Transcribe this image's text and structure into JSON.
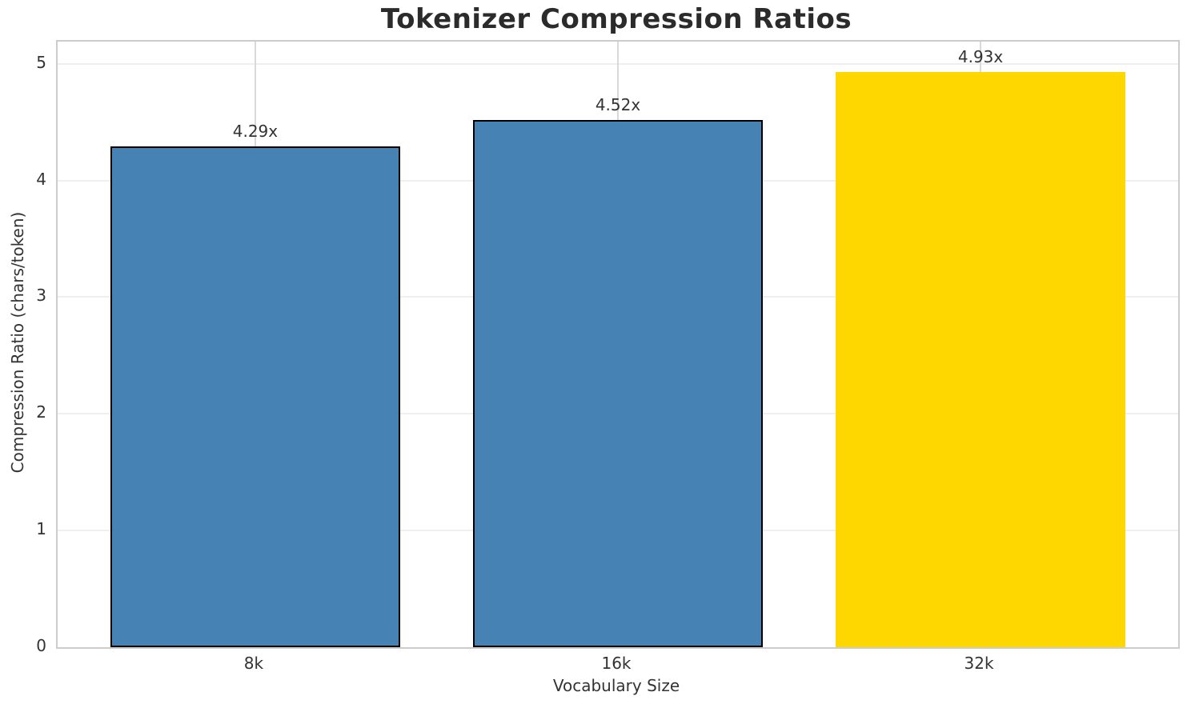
{
  "chart_data": {
    "type": "bar",
    "title": "Tokenizer Compression Ratios",
    "xlabel": "Vocabulary Size",
    "ylabel": "Compression Ratio (chars/token)",
    "categories": [
      "8k",
      "16k",
      "32k"
    ],
    "values": [
      4.29,
      4.52,
      4.93
    ],
    "bar_labels": [
      "4.29x",
      "4.52x",
      "4.93x"
    ],
    "bar_colors": [
      "#4682B4",
      "#4682B4",
      "#FFD700"
    ],
    "bar_edge_colors": [
      "#000000",
      "#000000",
      "none"
    ],
    "yticks": [
      0,
      1,
      2,
      3,
      4,
      5
    ],
    "ytick_labels": [
      "0",
      "1",
      "2",
      "3",
      "4",
      "5"
    ],
    "ylim": [
      0,
      5.19
    ],
    "xlim": [
      -0.545,
      2.545
    ],
    "bar_width_units": 0.8,
    "grid": true,
    "legend_position": "none",
    "colors": {
      "grid_horizontal": "#efefef",
      "grid_vertical": "#d9d9d9",
      "spine": "#cccccc",
      "text": "#333333",
      "title": "#2b2b2b",
      "background": "#ffffff"
    }
  }
}
